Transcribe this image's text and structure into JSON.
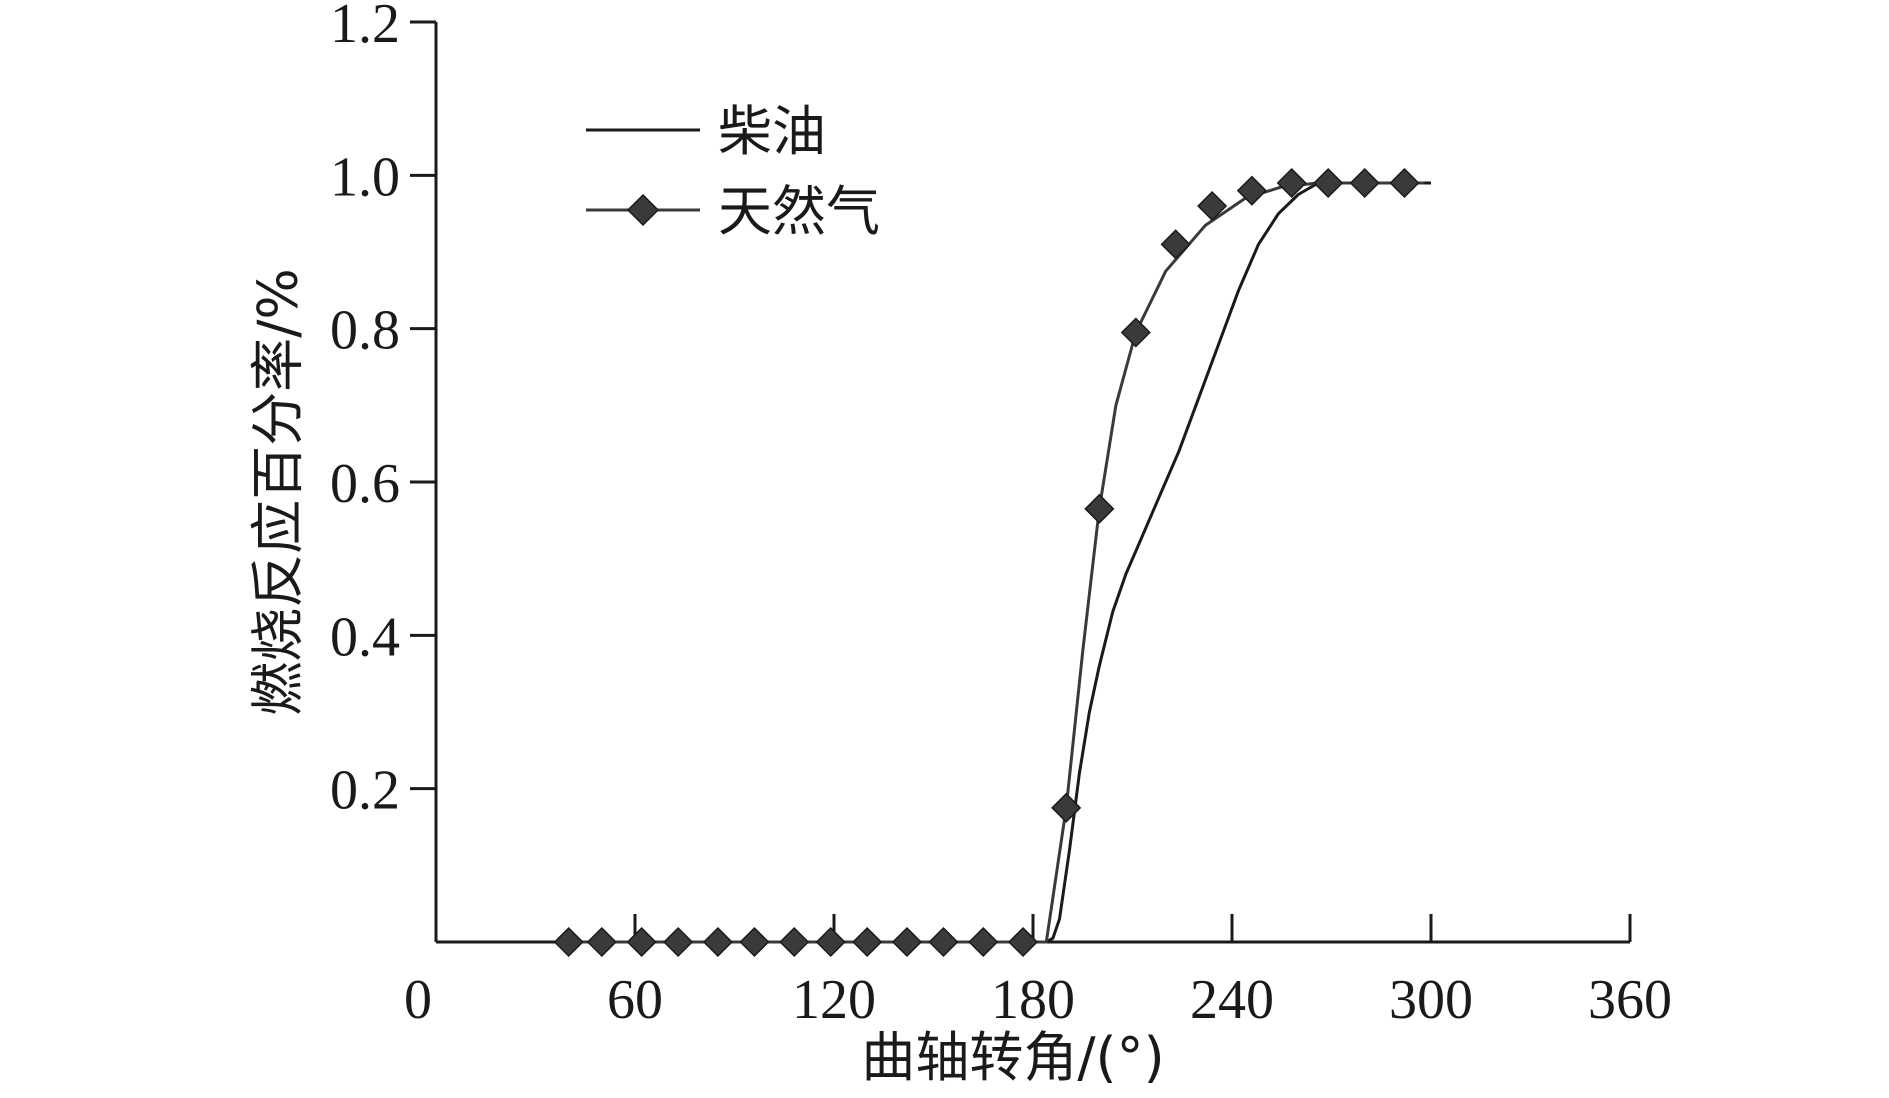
{
  "chart_data": {
    "type": "line",
    "title": "",
    "xlabel": "曲轴转角/(°)",
    "ylabel": "燃烧反应百分率/%",
    "xlim": [
      0,
      360
    ],
    "ylim": [
      0,
      1.2
    ],
    "x_ticks": [
      0,
      60,
      120,
      180,
      240,
      300,
      360
    ],
    "x_tick_labels": [
      "0",
      "60",
      "120",
      "180",
      "240",
      "300",
      "360"
    ],
    "y_ticks": [
      0.2,
      0.4,
      0.6,
      0.8,
      1.0,
      1.2
    ],
    "y_tick_labels": [
      "0.2",
      "0.4",
      "0.6",
      "0.8",
      "1.0",
      "1.2"
    ],
    "grid": false,
    "legend_position": "top-left",
    "series": [
      {
        "name": "柴油",
        "color": "#1a1a1a",
        "marker": "none",
        "x": [
          40,
          100,
          150,
          180,
          184,
          186,
          188,
          191,
          194,
          197,
          200,
          204,
          208,
          213,
          218,
          224,
          230,
          236,
          242,
          248,
          254,
          260,
          266,
          272,
          280,
          290,
          300
        ],
        "y": [
          0,
          0,
          0,
          0,
          0,
          0.005,
          0.03,
          0.12,
          0.22,
          0.3,
          0.36,
          0.43,
          0.48,
          0.53,
          0.58,
          0.64,
          0.71,
          0.78,
          0.85,
          0.91,
          0.95,
          0.975,
          0.99,
          0.99,
          0.99,
          0.99,
          0.99
        ]
      },
      {
        "name": "天然气",
        "color": "#3a3a3a",
        "marker": "diamond",
        "x": [
          40,
          50,
          62,
          73,
          85,
          96,
          108,
          119,
          130,
          142,
          153,
          165,
          177,
          184,
          190,
          195,
          200,
          205,
          211,
          220,
          232,
          244,
          255,
          266,
          276,
          287,
          298
        ],
        "y": [
          0,
          0,
          0,
          0,
          0,
          0,
          0,
          0,
          0,
          0,
          0,
          0,
          0,
          0,
          0.175,
          0.38,
          0.565,
          0.7,
          0.795,
          0.875,
          0.935,
          0.97,
          0.985,
          0.99,
          0.99,
          0.99,
          0.99
        ],
        "marker_x": [
          40,
          50,
          62,
          73,
          85,
          96,
          108,
          119,
          130,
          142,
          153,
          165,
          177,
          190,
          200,
          211,
          223,
          234,
          246,
          258,
          269,
          280,
          292
        ],
        "marker_y": [
          0,
          0,
          0,
          0,
          0,
          0,
          0,
          0,
          0,
          0,
          0,
          0,
          0,
          0.175,
          0.565,
          0.795,
          0.91,
          0.96,
          0.98,
          0.99,
          0.99,
          0.99,
          0.99
        ]
      }
    ]
  }
}
